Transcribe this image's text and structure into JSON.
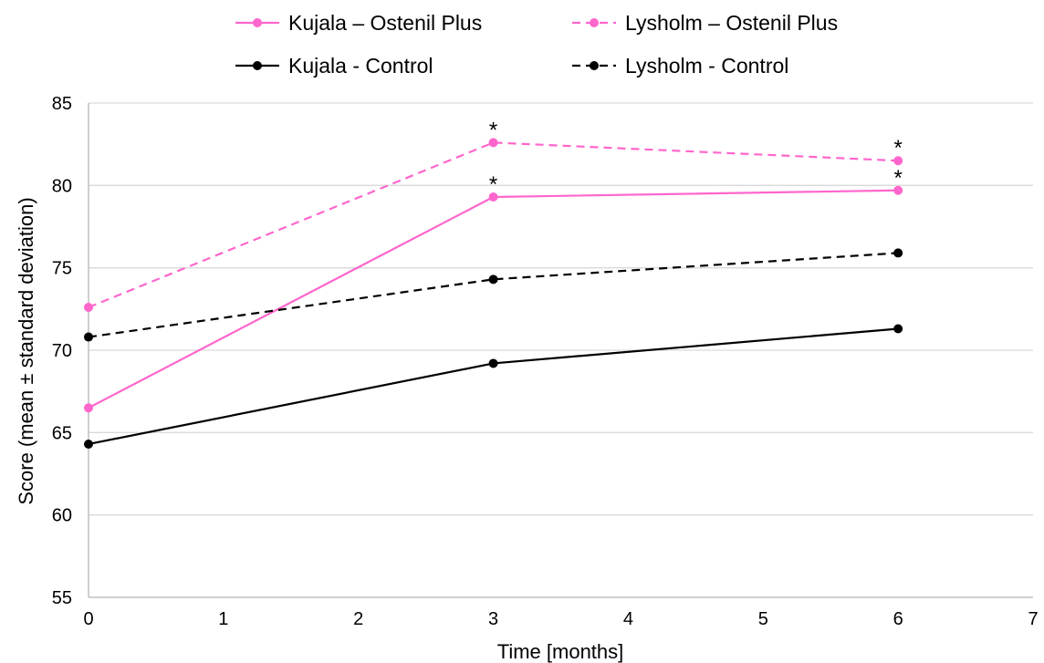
{
  "chart_data": {
    "type": "line",
    "title": "",
    "xlabel": "Time [months]",
    "ylabel": "Score (mean ± standard deviation)",
    "xlim": [
      0,
      7
    ],
    "ylim": [
      55,
      85
    ],
    "x_ticks": [
      0,
      1,
      2,
      3,
      4,
      5,
      6,
      7
    ],
    "y_ticks": [
      55,
      60,
      65,
      70,
      75,
      80,
      85
    ],
    "grid": "horizontal",
    "legend_position": "top",
    "series": [
      {
        "name": "Kujala – Ostenil Plus",
        "color": "#ff66cc",
        "line_style": "solid",
        "marker": "circle",
        "x": [
          0,
          3,
          6
        ],
        "y": [
          66.5,
          79.3,
          79.7
        ]
      },
      {
        "name": "Lysholm – Ostenil Plus",
        "color": "#ff66cc",
        "line_style": "dashed",
        "marker": "circle",
        "x": [
          0,
          3,
          6
        ],
        "y": [
          72.6,
          82.6,
          81.5
        ]
      },
      {
        "name": "Kujala - Control",
        "color": "#000000",
        "line_style": "solid",
        "marker": "circle",
        "x": [
          0,
          3,
          6
        ],
        "y": [
          64.3,
          69.2,
          71.3
        ]
      },
      {
        "name": "Lysholm - Control",
        "color": "#000000",
        "line_style": "dashed",
        "marker": "circle",
        "x": [
          0,
          3,
          6
        ],
        "y": [
          70.8,
          74.3,
          75.9
        ]
      }
    ],
    "annotations": [
      {
        "text": "*",
        "x": 3,
        "y": 82.6,
        "series": "Lysholm – Ostenil Plus"
      },
      {
        "text": "*",
        "x": 3,
        "y": 79.3,
        "series": "Kujala – Ostenil Plus"
      },
      {
        "text": "*",
        "x": 6,
        "y": 81.5,
        "series": "Lysholm – Ostenil Plus"
      },
      {
        "text": "*",
        "x": 6,
        "y": 79.7,
        "series": "Kujala – Ostenil Plus"
      }
    ]
  }
}
